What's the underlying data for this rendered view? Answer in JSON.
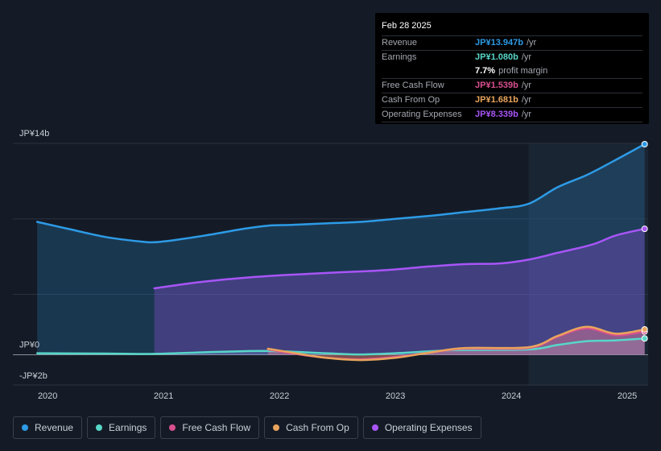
{
  "chart_data": {
    "type": "area",
    "ylim": [
      -2,
      14
    ],
    "y_tick_labels": [
      "JP¥14b",
      "JP¥0",
      "-JP¥2b"
    ],
    "x_tick_labels": [
      "2020",
      "2021",
      "2022",
      "2023",
      "2024",
      "2025"
    ],
    "x_tick_years": [
      2020.0,
      2021.0,
      2022.0,
      2023.0,
      2024.0,
      2025.0
    ],
    "highlight_start": 2024.15,
    "grid": true,
    "legend_position": "bottom",
    "series": [
      {
        "name": "Revenue",
        "key": "revenue",
        "color": "#2d9be6",
        "fill": true,
        "x": [
          2019.91,
          2020.2,
          2020.5,
          2020.8,
          2020.92,
          2021.1,
          2021.4,
          2021.7,
          2021.9,
          2022.1,
          2022.4,
          2022.7,
          2023.0,
          2023.3,
          2023.6,
          2023.9,
          2024.15,
          2024.4,
          2024.65,
          2024.9,
          2025.15
        ],
        "values": [
          8.8,
          8.3,
          7.8,
          7.5,
          7.45,
          7.6,
          7.95,
          8.35,
          8.55,
          8.6,
          8.7,
          8.8,
          9.0,
          9.2,
          9.45,
          9.7,
          10.0,
          11.1,
          11.9,
          12.9,
          13.947
        ]
      },
      {
        "name": "Earnings",
        "key": "earnings",
        "color": "#58d6c8",
        "fill": true,
        "x": [
          2019.91,
          2020.5,
          2020.92,
          2021.5,
          2021.9,
          2022.4,
          2022.7,
          2023.0,
          2023.5,
          2024.15,
          2024.4,
          2024.65,
          2024.9,
          2025.15
        ],
        "values": [
          0.1,
          0.08,
          0.06,
          0.2,
          0.25,
          0.1,
          0.02,
          0.1,
          0.3,
          0.35,
          0.65,
          0.9,
          0.95,
          1.08
        ]
      },
      {
        "name": "Free Cash Flow",
        "key": "fcf",
        "color": "#d9508f",
        "fill": true,
        "x": [
          2021.9,
          2022.1,
          2022.4,
          2022.7,
          2023.0,
          2023.3,
          2023.6,
          2024.15,
          2024.4,
          2024.65,
          2024.9,
          2025.15
        ],
        "values": [
          0.35,
          0.1,
          -0.2,
          -0.3,
          -0.15,
          0.15,
          0.4,
          0.45,
          1.2,
          1.75,
          1.3,
          1.539
        ]
      },
      {
        "name": "Cash From Op",
        "key": "cfo",
        "color": "#e9a55c",
        "fill": true,
        "x": [
          2021.9,
          2022.1,
          2022.4,
          2022.7,
          2023.0,
          2023.3,
          2023.6,
          2024.15,
          2024.4,
          2024.65,
          2024.9,
          2025.15
        ],
        "values": [
          0.4,
          0.15,
          -0.2,
          -0.35,
          -0.2,
          0.15,
          0.45,
          0.5,
          1.25,
          1.85,
          1.4,
          1.681
        ]
      },
      {
        "name": "Operating Expenses",
        "key": "opex",
        "color": "#a855f7",
        "fill": true,
        "x": [
          2020.92,
          2021.3,
          2021.7,
          2022.1,
          2022.5,
          2022.9,
          2023.3,
          2023.6,
          2023.9,
          2024.15,
          2024.4,
          2024.7,
          2024.9,
          2025.15
        ],
        "values": [
          4.4,
          4.8,
          5.1,
          5.3,
          5.45,
          5.6,
          5.85,
          6.0,
          6.05,
          6.3,
          6.75,
          7.3,
          7.9,
          8.339
        ]
      }
    ]
  },
  "tooltip": {
    "date": "Feb 28 2025",
    "rows": [
      {
        "label": "Revenue",
        "value": "JP¥13.947b",
        "unit": "/yr",
        "color": "#2d9be6"
      },
      {
        "label": "Earnings",
        "value": "JP¥1.080b",
        "unit": "/yr",
        "color": "#58d6c8"
      },
      {
        "label": "",
        "value": "7.7%",
        "unit": "profit margin",
        "color": "#ffffff"
      },
      {
        "label": "Free Cash Flow",
        "value": "JP¥1.539b",
        "unit": "/yr",
        "color": "#d9508f"
      },
      {
        "label": "Cash From Op",
        "value": "JP¥1.681b",
        "unit": "/yr",
        "color": "#e9a55c"
      },
      {
        "label": "Operating Expenses",
        "value": "JP¥8.339b",
        "unit": "/yr",
        "color": "#a855f7"
      }
    ]
  },
  "legend": [
    {
      "label": "Revenue",
      "color": "#2d9be6"
    },
    {
      "label": "Earnings",
      "color": "#58d6c8"
    },
    {
      "label": "Free Cash Flow",
      "color": "#d9508f"
    },
    {
      "label": "Cash From Op",
      "color": "#e9a55c"
    },
    {
      "label": "Operating Expenses",
      "color": "#a855f7"
    }
  ]
}
